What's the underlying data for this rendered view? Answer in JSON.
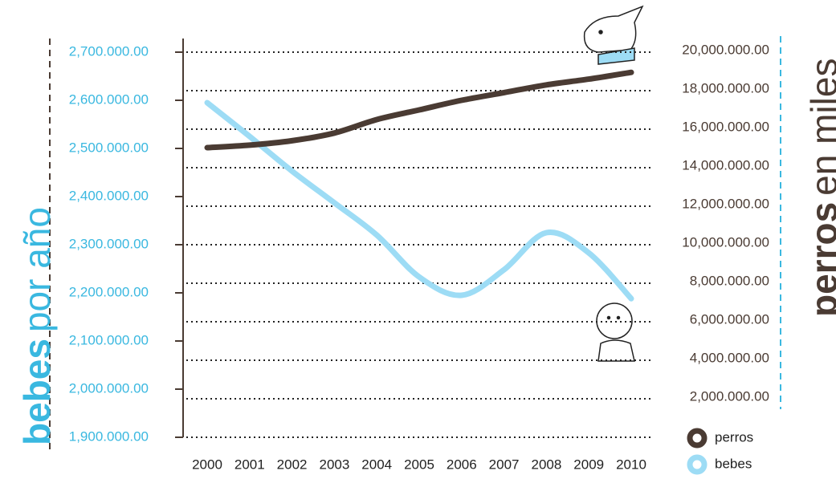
{
  "chart_data": {
    "type": "line",
    "ylabel": [
      "bebes",
      "por año"
    ],
    "y2label": [
      "perros",
      "en miles"
    ],
    "x": [
      2000,
      2001,
      2002,
      2003,
      2004,
      2005,
      2006,
      2007,
      2008,
      2009,
      2010
    ],
    "xticks": [
      2000,
      2001,
      2002,
      2003,
      2004,
      2005,
      2006,
      2007,
      2008,
      2009,
      2010
    ],
    "xlim": [
      2000,
      2010
    ],
    "ylim": [
      1900000,
      2700000
    ],
    "yticks": [
      {
        "value": 1900000,
        "label": "1,900.000.00"
      },
      {
        "value": 2000000,
        "label": "2,000.000.00"
      },
      {
        "value": 2100000,
        "label": "2,100.000.00"
      },
      {
        "value": 2200000,
        "label": "2,200.000.00"
      },
      {
        "value": 2300000,
        "label": "2,300.000.00"
      },
      {
        "value": 2400000,
        "label": "2,400.000.00"
      },
      {
        "value": 2500000,
        "label": "2,500.000.00"
      },
      {
        "value": 2600000,
        "label": "2,600.000.00"
      },
      {
        "value": 2700000,
        "label": "2,700.000.00"
      }
    ],
    "y2lim": [
      0,
      20000000
    ],
    "y2ticks": [
      {
        "value": 2000000,
        "label": "2,000.000.00"
      },
      {
        "value": 4000000,
        "label": "4,000.000.00"
      },
      {
        "value": 6000000,
        "label": "6,000.000.00"
      },
      {
        "value": 8000000,
        "label": "8,000.000.00"
      },
      {
        "value": 10000000,
        "label": "10,000.000.00"
      },
      {
        "value": 12000000,
        "label": "12,000.000.00"
      },
      {
        "value": 14000000,
        "label": "14,000.000.00"
      },
      {
        "value": 16000000,
        "label": "16,000.000.00"
      },
      {
        "value": 18000000,
        "label": "18,000.000.00"
      },
      {
        "value": 20000000,
        "label": "20,000.000.00"
      }
    ],
    "grid": true,
    "legend": "lower right",
    "series": [
      {
        "name": "perros",
        "color": "#4a3b33",
        "axis": "y2",
        "values": [
          15040000,
          15170000,
          15400000,
          15800000,
          16500000,
          17000000,
          17500000,
          17900000,
          18300000,
          18600000,
          18950000
        ]
      },
      {
        "name": "bebes",
        "color": "#9ddcf5",
        "values": [
          2595000,
          2525000,
          2453000,
          2387000,
          2320000,
          2233000,
          2195000,
          2248000,
          2325000,
          2283000,
          2188000
        ]
      }
    ]
  }
}
